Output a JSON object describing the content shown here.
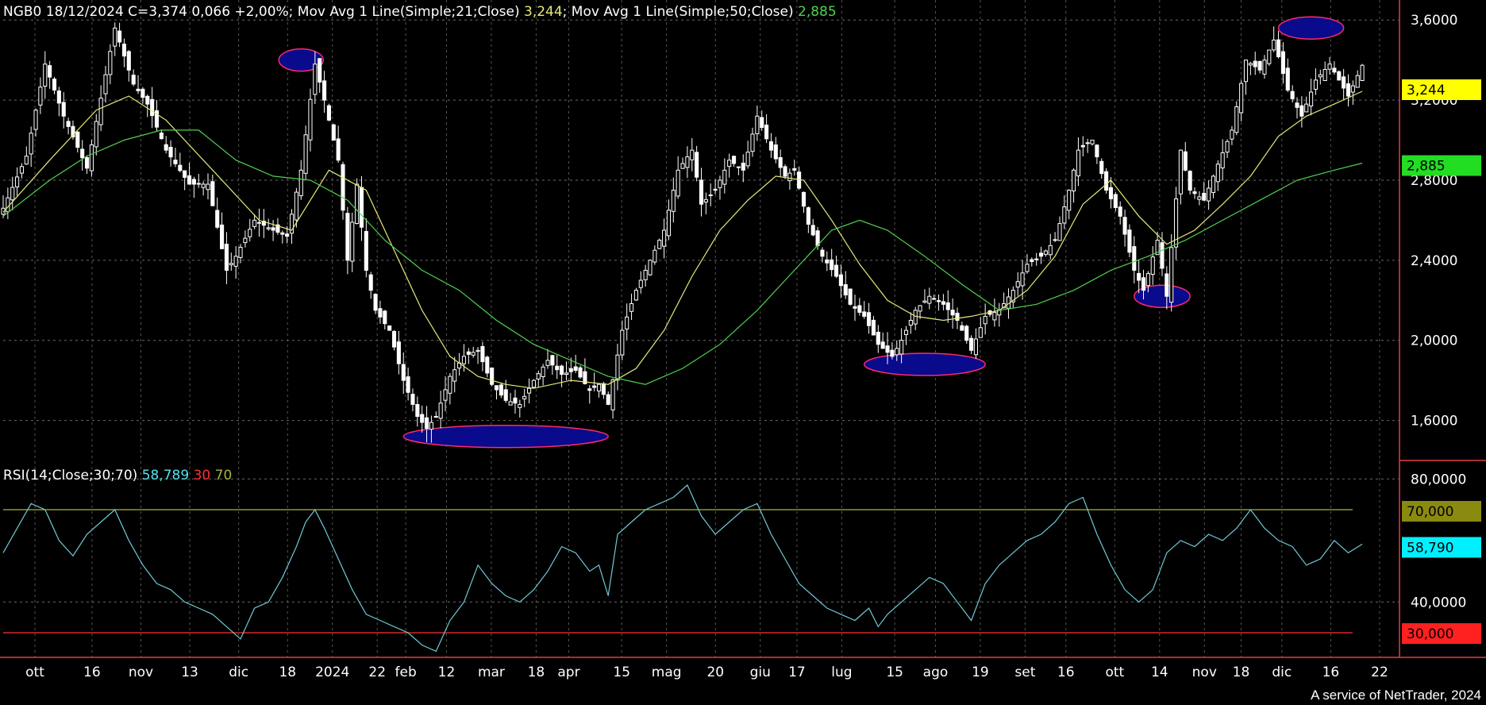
{
  "header": {
    "symbol_line": "NGB0 18/12/2024 C=3,374 0,066 +2,00%",
    "ma21_label": "; Mov Avg 1 Line(Simple;21;Close)",
    "ma21_value": "3,244",
    "ma50_label": "; Mov Avg 1 Line(Simple;50;Close)",
    "ma50_value": "2,885"
  },
  "rsi_header": {
    "label": "RSI(14;Close;30;70)",
    "value": "58,789",
    "low": "30",
    "high": "70"
  },
  "footer": "A service of NetTrader, 2024",
  "colors": {
    "ma21": "#e8e87a",
    "ma50": "#4fd14f",
    "rsi": "#6fc9d6",
    "rsi_low": "#ff3030",
    "rsi_high": "#aab23a",
    "oval_fill": "#0a0a8c",
    "oval_stroke": "#ff2a6a"
  },
  "chart_data": [
    {
      "type": "candlestick",
      "title": "NGB0 18/12/2024 C=3,374 0,066 +2,00%",
      "ylim": [
        1.4,
        3.7
      ],
      "y_ticks": [
        "1,6000",
        "2,0000",
        "2,4000",
        "2,8000",
        "3,2000",
        "3,6000"
      ],
      "grid": true,
      "x_labels": [
        "ott",
        "16",
        "nov",
        "13",
        "dic",
        "18",
        "2024",
        "22",
        "feb",
        "12",
        "mar",
        "18",
        "apr",
        "15",
        "mag",
        "20",
        "giu",
        "17",
        "lug",
        "15",
        "ago",
        "19",
        "set",
        "16",
        "ott",
        "14",
        "nov",
        "18",
        "dic",
        "16",
        "22"
      ],
      "price_path": [
        [
          0,
          2.66
        ],
        [
          5,
          2.92
        ],
        [
          9,
          3.38
        ],
        [
          13,
          3.12
        ],
        [
          18,
          2.86
        ],
        [
          24,
          3.56
        ],
        [
          28,
          3.28
        ],
        [
          31,
          3.18
        ],
        [
          35,
          2.95
        ],
        [
          40,
          2.78
        ],
        [
          44,
          2.78
        ],
        [
          48,
          2.35
        ],
        [
          50,
          2.42
        ],
        [
          54,
          2.6
        ],
        [
          58,
          2.55
        ],
        [
          61,
          2.52
        ],
        [
          64,
          2.85
        ],
        [
          67,
          3.38
        ],
        [
          69,
          3.2
        ],
        [
          72,
          2.9
        ],
        [
          74,
          2.4
        ],
        [
          76,
          2.78
        ],
        [
          78,
          2.35
        ],
        [
          80,
          2.15
        ],
        [
          83,
          2.05
        ],
        [
          86,
          1.8
        ],
        [
          89,
          1.62
        ],
        [
          91,
          1.56
        ],
        [
          93,
          1.62
        ],
        [
          96,
          1.82
        ],
        [
          99,
          1.92
        ],
        [
          102,
          1.95
        ],
        [
          105,
          1.78
        ],
        [
          108,
          1.7
        ],
        [
          111,
          1.68
        ],
        [
          114,
          1.8
        ],
        [
          117,
          1.9
        ],
        [
          120,
          1.83
        ],
        [
          123,
          1.85
        ],
        [
          126,
          1.75
        ],
        [
          128,
          1.78
        ],
        [
          130,
          1.68
        ],
        [
          133,
          2.05
        ],
        [
          136,
          2.25
        ],
        [
          139,
          2.4
        ],
        [
          142,
          2.55
        ],
        [
          145,
          2.85
        ],
        [
          148,
          2.95
        ],
        [
          150,
          2.68
        ],
        [
          153,
          2.75
        ],
        [
          156,
          2.9
        ],
        [
          159,
          2.85
        ],
        [
          162,
          3.12
        ],
        [
          165,
          2.95
        ],
        [
          168,
          2.82
        ],
        [
          170,
          2.85
        ],
        [
          173,
          2.58
        ],
        [
          176,
          2.42
        ],
        [
          179,
          2.32
        ],
        [
          182,
          2.18
        ],
        [
          185,
          2.12
        ],
        [
          188,
          1.98
        ],
        [
          191,
          1.92
        ],
        [
          193,
          2.0
        ],
        [
          196,
          2.15
        ],
        [
          199,
          2.22
        ],
        [
          202,
          2.18
        ],
        [
          205,
          2.1
        ],
        [
          208,
          1.95
        ],
        [
          211,
          2.12
        ],
        [
          214,
          2.15
        ],
        [
          217,
          2.25
        ],
        [
          220,
          2.38
        ],
        [
          223,
          2.42
        ],
        [
          226,
          2.5
        ],
        [
          229,
          2.75
        ],
        [
          231,
          2.95
        ],
        [
          234,
          3.0
        ],
        [
          237,
          2.75
        ],
        [
          240,
          2.62
        ],
        [
          243,
          2.35
        ],
        [
          245,
          2.25
        ],
        [
          248,
          2.5
        ],
        [
          250,
          2.22
        ],
        [
          253,
          2.95
        ],
        [
          255,
          2.75
        ],
        [
          258,
          2.7
        ],
        [
          261,
          2.88
        ],
        [
          264,
          3.05
        ],
        [
          267,
          3.4
        ],
        [
          270,
          3.35
        ],
        [
          273,
          3.5
        ],
        [
          276,
          3.25
        ],
        [
          279,
          3.12
        ],
        [
          282,
          3.3
        ],
        [
          285,
          3.38
        ],
        [
          287,
          3.3
        ],
        [
          289,
          3.22
        ],
        [
          292,
          3.374
        ]
      ],
      "ma21_path": [
        [
          0,
          2.64
        ],
        [
          10,
          2.9
        ],
        [
          20,
          3.15
        ],
        [
          27,
          3.22
        ],
        [
          35,
          3.1
        ],
        [
          45,
          2.85
        ],
        [
          55,
          2.6
        ],
        [
          62,
          2.55
        ],
        [
          70,
          2.85
        ],
        [
          78,
          2.75
        ],
        [
          84,
          2.45
        ],
        [
          90,
          2.15
        ],
        [
          96,
          1.92
        ],
        [
          102,
          1.82
        ],
        [
          108,
          1.78
        ],
        [
          114,
          1.76
        ],
        [
          122,
          1.8
        ],
        [
          130,
          1.78
        ],
        [
          136,
          1.86
        ],
        [
          142,
          2.05
        ],
        [
          148,
          2.32
        ],
        [
          154,
          2.55
        ],
        [
          160,
          2.7
        ],
        [
          166,
          2.82
        ],
        [
          172,
          2.8
        ],
        [
          178,
          2.6
        ],
        [
          184,
          2.38
        ],
        [
          190,
          2.2
        ],
        [
          196,
          2.12
        ],
        [
          202,
          2.1
        ],
        [
          208,
          2.12
        ],
        [
          214,
          2.15
        ],
        [
          220,
          2.25
        ],
        [
          226,
          2.42
        ],
        [
          232,
          2.68
        ],
        [
          238,
          2.8
        ],
        [
          244,
          2.62
        ],
        [
          250,
          2.48
        ],
        [
          256,
          2.55
        ],
        [
          262,
          2.68
        ],
        [
          268,
          2.82
        ],
        [
          274,
          3.02
        ],
        [
          280,
          3.12
        ],
        [
          286,
          3.18
        ],
        [
          292,
          3.244
        ]
      ],
      "ma50_path": [
        [
          0,
          2.62
        ],
        [
          10,
          2.8
        ],
        [
          18,
          2.92
        ],
        [
          26,
          3.0
        ],
        [
          34,
          3.05
        ],
        [
          42,
          3.05
        ],
        [
          50,
          2.9
        ],
        [
          58,
          2.82
        ],
        [
          66,
          2.8
        ],
        [
          74,
          2.7
        ],
        [
          82,
          2.5
        ],
        [
          90,
          2.35
        ],
        [
          98,
          2.25
        ],
        [
          106,
          2.1
        ],
        [
          114,
          1.98
        ],
        [
          122,
          1.9
        ],
        [
          130,
          1.82
        ],
        [
          138,
          1.78
        ],
        [
          146,
          1.86
        ],
        [
          154,
          1.98
        ],
        [
          162,
          2.15
        ],
        [
          170,
          2.35
        ],
        [
          178,
          2.55
        ],
        [
          184,
          2.6
        ],
        [
          190,
          2.55
        ],
        [
          198,
          2.42
        ],
        [
          206,
          2.28
        ],
        [
          214,
          2.15
        ],
        [
          222,
          2.18
        ],
        [
          230,
          2.25
        ],
        [
          238,
          2.35
        ],
        [
          246,
          2.42
        ],
        [
          254,
          2.5
        ],
        [
          262,
          2.6
        ],
        [
          270,
          2.7
        ],
        [
          278,
          2.8
        ],
        [
          286,
          2.85
        ],
        [
          292,
          2.885
        ]
      ],
      "highlighted_extremes": [
        {
          "kind": "high",
          "x": [
            61,
            67
          ],
          "y": 3.4
        },
        {
          "kind": "low",
          "x": [
            86,
            130
          ],
          "y": 1.52
        },
        {
          "kind": "low",
          "x": [
            185,
            211
          ],
          "y": 1.88
        },
        {
          "kind": "low",
          "x": [
            243,
            255
          ],
          "y": 2.22
        },
        {
          "kind": "high",
          "x": [
            274,
            288
          ],
          "y": 3.56
        }
      ],
      "price_label": "3,374",
      "ma21_tag": "3,244",
      "ma50_tag": "2,885"
    },
    {
      "type": "line",
      "title": "RSI(14;Close;30;70)",
      "ylim": [
        22,
        86
      ],
      "y_ticks": [
        "40,0000",
        "80,0000"
      ],
      "thresholds": [
        30,
        70
      ],
      "tags": [
        "70,000",
        "58,790",
        "30,000"
      ],
      "rsi_path": [
        [
          0,
          56
        ],
        [
          3,
          64
        ],
        [
          6,
          72
        ],
        [
          9,
          70
        ],
        [
          12,
          60
        ],
        [
          15,
          55
        ],
        [
          18,
          62
        ],
        [
          21,
          66
        ],
        [
          24,
          70
        ],
        [
          27,
          60
        ],
        [
          30,
          52
        ],
        [
          33,
          46
        ],
        [
          36,
          44
        ],
        [
          39,
          40
        ],
        [
          42,
          38
        ],
        [
          45,
          36
        ],
        [
          48,
          32
        ],
        [
          51,
          28
        ],
        [
          54,
          38
        ],
        [
          57,
          40
        ],
        [
          60,
          48
        ],
        [
          63,
          58
        ],
        [
          65,
          66
        ],
        [
          67,
          70
        ],
        [
          69,
          64
        ],
        [
          72,
          54
        ],
        [
          75,
          44
        ],
        [
          78,
          36
        ],
        [
          81,
          34
        ],
        [
          84,
          32
        ],
        [
          87,
          30
        ],
        [
          90,
          26
        ],
        [
          93,
          24
        ],
        [
          96,
          34
        ],
        [
          99,
          40
        ],
        [
          102,
          52
        ],
        [
          105,
          46
        ],
        [
          108,
          42
        ],
        [
          111,
          40
        ],
        [
          114,
          44
        ],
        [
          117,
          50
        ],
        [
          120,
          58
        ],
        [
          123,
          56
        ],
        [
          126,
          50
        ],
        [
          128,
          52
        ],
        [
          130,
          42
        ],
        [
          132,
          62
        ],
        [
          135,
          66
        ],
        [
          138,
          70
        ],
        [
          141,
          72
        ],
        [
          144,
          74
        ],
        [
          147,
          78
        ],
        [
          150,
          68
        ],
        [
          153,
          62
        ],
        [
          156,
          66
        ],
        [
          159,
          70
        ],
        [
          162,
          72
        ],
        [
          165,
          62
        ],
        [
          168,
          54
        ],
        [
          171,
          46
        ],
        [
          174,
          42
        ],
        [
          177,
          38
        ],
        [
          180,
          36
        ],
        [
          183,
          34
        ],
        [
          186,
          38
        ],
        [
          188,
          32
        ],
        [
          190,
          36
        ],
        [
          193,
          40
        ],
        [
          196,
          44
        ],
        [
          199,
          48
        ],
        [
          202,
          46
        ],
        [
          205,
          40
        ],
        [
          208,
          34
        ],
        [
          211,
          46
        ],
        [
          214,
          52
        ],
        [
          217,
          56
        ],
        [
          220,
          60
        ],
        [
          223,
          62
        ],
        [
          226,
          66
        ],
        [
          229,
          72
        ],
        [
          232,
          74
        ],
        [
          235,
          62
        ],
        [
          238,
          52
        ],
        [
          241,
          44
        ],
        [
          244,
          40
        ],
        [
          247,
          44
        ],
        [
          250,
          56
        ],
        [
          253,
          60
        ],
        [
          256,
          58
        ],
        [
          259,
          62
        ],
        [
          262,
          60
        ],
        [
          265,
          64
        ],
        [
          268,
          70
        ],
        [
          271,
          64
        ],
        [
          274,
          60
        ],
        [
          277,
          58
        ],
        [
          280,
          52
        ],
        [
          283,
          54
        ],
        [
          286,
          60
        ],
        [
          289,
          56
        ],
        [
          292,
          58.79
        ]
      ]
    }
  ]
}
